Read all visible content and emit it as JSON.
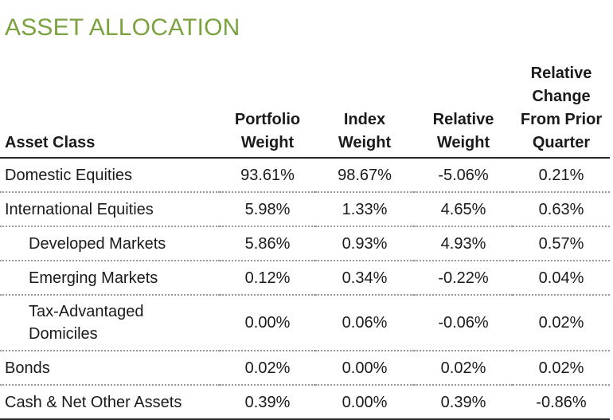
{
  "title": "ASSET ALLOCATION",
  "headers": {
    "asset_class": "Asset Class",
    "portfolio_weight": [
      "Portfolio",
      "Weight"
    ],
    "index_weight": [
      "Index",
      "Weight"
    ],
    "relative_weight": [
      "Relative",
      "Weight"
    ],
    "relative_change": [
      "Relative",
      "Change",
      "From Prior",
      "Quarter"
    ]
  },
  "rows": [
    {
      "label": [
        "Domestic Equities"
      ],
      "indent": false,
      "portfolio": "93.61%",
      "index": "98.67%",
      "relative": "-5.06%",
      "change": "0.21%"
    },
    {
      "label": [
        "International Equities"
      ],
      "indent": false,
      "portfolio": "5.98%",
      "index": "1.33%",
      "relative": "4.65%",
      "change": "0.63%"
    },
    {
      "label": [
        "Developed Markets"
      ],
      "indent": true,
      "portfolio": "5.86%",
      "index": "0.93%",
      "relative": "4.93%",
      "change": "0.57%"
    },
    {
      "label": [
        "Emerging Markets"
      ],
      "indent": true,
      "portfolio": "0.12%",
      "index": "0.34%",
      "relative": "-0.22%",
      "change": "0.04%"
    },
    {
      "label": [
        "Tax-Advantaged",
        "Domiciles"
      ],
      "indent": true,
      "portfolio": "0.00%",
      "index": "0.06%",
      "relative": "-0.06%",
      "change": "0.02%"
    },
    {
      "label": [
        "Bonds"
      ],
      "indent": false,
      "portfolio": "0.02%",
      "index": "0.00%",
      "relative": "0.02%",
      "change": "0.02%"
    },
    {
      "label": [
        "Cash & Net Other Assets"
      ],
      "indent": false,
      "portfolio": "0.39%",
      "index": "0.00%",
      "relative": "0.39%",
      "change": "-0.86%"
    }
  ]
}
